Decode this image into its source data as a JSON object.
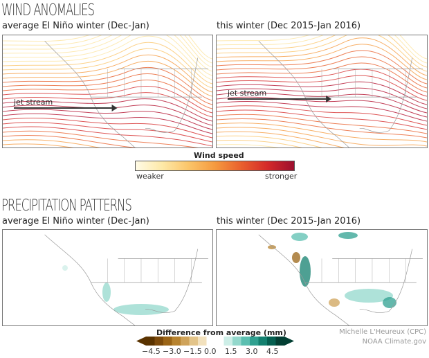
{
  "wind": {
    "title": "WIND ANOMALIES",
    "left_subtitle": "average El Niño winter (Dec-Jan)",
    "right_subtitle": "this winter (Dec 2015-Jan 2016)",
    "jet_label": "jet stream",
    "colorbar": {
      "title": "Wind speed",
      "min_label": "weaker",
      "max_label": "stronger",
      "colors": [
        "#fffbe6",
        "#fde9a8",
        "#fbc56a",
        "#f59a3f",
        "#e9602d",
        "#d42a2a",
        "#9c0f2e"
      ]
    }
  },
  "precip": {
    "title": "PRECIPITATION PATTERNS",
    "left_subtitle": "average El Niño winter (Dec-Jan)",
    "right_subtitle": "this winter (Dec 2015-Jan 2016)",
    "colorbar": {
      "title": "Difference from average (mm)",
      "ticks": [
        "−4.5",
        "−3.0",
        "−1.5",
        "0.0",
        "1.5",
        "3.0",
        "4.5"
      ],
      "colors": [
        "#5a3300",
        "#7c4a0b",
        "#9a6416",
        "#b7832f",
        "#cfa35a",
        "#e3c489",
        "#f2e1bd",
        "#ffffff",
        "#ffffff",
        "#cdeee7",
        "#93d8cc",
        "#5bbfb0",
        "#2fa090",
        "#13806f",
        "#055f50",
        "#033f33"
      ]
    }
  },
  "credit": {
    "author": "Michelle L'Heureux (CPC)",
    "source": "NOAA Climate.gov"
  }
}
